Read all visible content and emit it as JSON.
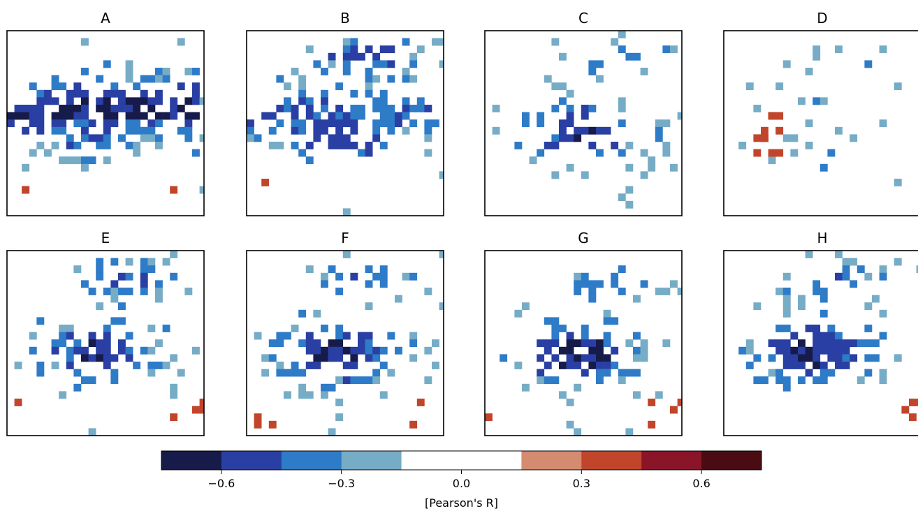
{
  "chart_data": {
    "type": "heatmap",
    "description_kind": "small-multiple gridded correlation maps of Europe",
    "panels": [
      {
        "title": "A",
        "pattern": "north-central-band",
        "red_cells": 3
      },
      {
        "title": "B",
        "pattern": "broad-central-and-nordic",
        "red_cells": 1
      },
      {
        "title": "C",
        "pattern": "central-and-baltic",
        "red_cells": 0
      },
      {
        "title": "D",
        "pattern": "sparse-with-western-positive",
        "red_cells": 12
      },
      {
        "title": "E",
        "pattern": "central-and-scandinavia",
        "red_cells": 5
      },
      {
        "title": "F",
        "pattern": "central-europe-strong",
        "red_cells": 5
      },
      {
        "title": "G",
        "pattern": "central-europe-strongest",
        "red_cells": 5
      },
      {
        "title": "H",
        "pattern": "central-europe-core",
        "red_cells": 4
      }
    ],
    "colorbar": {
      "label": "[Pearson's R]",
      "range": [
        -0.75,
        0.75
      ],
      "bounds": [
        -0.75,
        -0.6,
        -0.45,
        -0.3,
        -0.15,
        0.15,
        0.3,
        0.45,
        0.6,
        0.75
      ],
      "colors": [
        "#161b4a",
        "#2a3fa3",
        "#2e7bc8",
        "#76acc6",
        "#ffffff",
        "#d48b70",
        "#c1452b",
        "#8a1428",
        "#4a0c12"
      ],
      "ticks": [
        -0.6,
        -0.3,
        0.0,
        0.3,
        0.6
      ],
      "tick_labels": [
        "−0.6",
        "−0.3",
        "0.0",
        "0.3",
        "0.6"
      ]
    },
    "grid": false,
    "legend": "bottom-colorbar"
  }
}
